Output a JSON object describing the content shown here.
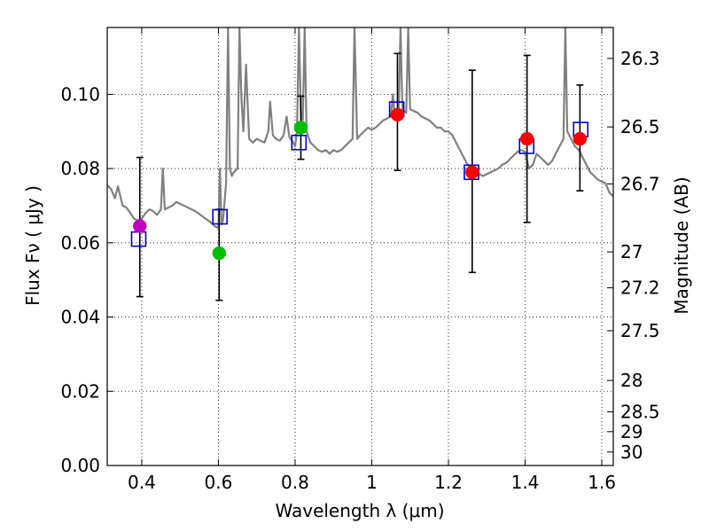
{
  "chart_data": {
    "type": "scatter",
    "xlabel": "Wavelength  λ (μm)",
    "ylabel_left": "Flux  Fν  ( μJy )",
    "ylabel_right": "Magnitude (AB)",
    "xlim": [
      0.31,
      1.63
    ],
    "ylim": [
      0.0,
      0.118
    ],
    "grid": true,
    "x_ticks": [
      0.4,
      0.6,
      0.8,
      1.0,
      1.2,
      1.4,
      1.6
    ],
    "x_tick_labels": [
      "0.4",
      "0.6",
      "0.8",
      "1",
      "1.2",
      "1.4",
      "1.6"
    ],
    "y_ticks": [
      0.0,
      0.02,
      0.04,
      0.06,
      0.08,
      0.1
    ],
    "y_tick_labels": [
      "0.00",
      "0.02",
      "0.04",
      "0.06",
      "0.08",
      "0.10"
    ],
    "mag_ticks": [
      26.3,
      26.5,
      26.7,
      27,
      27.2,
      27.5,
      28,
      28.5,
      29,
      30
    ],
    "mag_tick_labels": [
      "26.3",
      "26.5",
      "26.7",
      "27",
      "27.2",
      "27.5",
      "28",
      "28.5",
      "29",
      "30"
    ],
    "observed": [
      {
        "x": 0.395,
        "y": 0.0645,
        "yerr_low": 0.0455,
        "yerr_high": 0.083,
        "color": "#bf00bf"
      },
      {
        "x": 0.602,
        "y": 0.0572,
        "yerr_low": 0.0445,
        "yerr_high": 0.069,
        "color": "#00bf00"
      },
      {
        "x": 0.815,
        "y": 0.091,
        "yerr_low": 0.0825,
        "yerr_high": 0.0995,
        "color": "#00bf00"
      },
      {
        "x": 1.067,
        "y": 0.0945,
        "yerr_low": 0.0795,
        "yerr_high": 0.111,
        "color": "#ff0000"
      },
      {
        "x": 1.262,
        "y": 0.079,
        "yerr_low": 0.052,
        "yerr_high": 0.1065,
        "color": "#ff0000"
      },
      {
        "x": 1.405,
        "y": 0.088,
        "yerr_low": 0.0655,
        "yerr_high": 0.1105,
        "color": "#ff0000"
      },
      {
        "x": 1.543,
        "y": 0.088,
        "yerr_low": 0.074,
        "yerr_high": 0.1025,
        "color": "#ff0000"
      }
    ],
    "model_band": [
      {
        "x": 0.392,
        "y": 0.061
      },
      {
        "x": 0.604,
        "y": 0.067
      },
      {
        "x": 0.81,
        "y": 0.087
      },
      {
        "x": 1.065,
        "y": 0.096
      },
      {
        "x": 1.26,
        "y": 0.079
      },
      {
        "x": 1.404,
        "y": 0.086
      },
      {
        "x": 1.545,
        "y": 0.0905
      }
    ],
    "template_spectrum": [
      [
        0.31,
        0.0755
      ],
      [
        0.32,
        0.0745
      ],
      [
        0.33,
        0.072
      ],
      [
        0.338,
        0.0752
      ],
      [
        0.35,
        0.07
      ],
      [
        0.36,
        0.0695
      ],
      [
        0.37,
        0.068
      ],
      [
        0.38,
        0.0665
      ],
      [
        0.39,
        0.066
      ],
      [
        0.4,
        0.0665
      ],
      [
        0.41,
        0.068
      ],
      [
        0.42,
        0.069
      ],
      [
        0.43,
        0.0685
      ],
      [
        0.44,
        0.0675
      ],
      [
        0.45,
        0.069
      ],
      [
        0.455,
        0.08
      ],
      [
        0.46,
        0.069
      ],
      [
        0.47,
        0.0695
      ],
      [
        0.48,
        0.07
      ],
      [
        0.49,
        0.071
      ],
      [
        0.5,
        0.0705
      ],
      [
        0.52,
        0.0695
      ],
      [
        0.54,
        0.0685
      ],
      [
        0.56,
        0.067
      ],
      [
        0.58,
        0.0655
      ],
      [
        0.59,
        0.0645
      ],
      [
        0.6,
        0.064
      ],
      [
        0.604,
        0.08
      ],
      [
        0.608,
        0.065
      ],
      [
        0.612,
        0.066
      ],
      [
        0.62,
        0.076
      ],
      [
        0.625,
        0.118
      ],
      [
        0.63,
        0.08
      ],
      [
        0.635,
        0.078
      ],
      [
        0.64,
        0.079
      ],
      [
        0.65,
        0.08
      ],
      [
        0.655,
        0.118
      ],
      [
        0.66,
        0.099
      ],
      [
        0.665,
        0.09
      ],
      [
        0.672,
        0.108
      ],
      [
        0.68,
        0.088
      ],
      [
        0.69,
        0.087
      ],
      [
        0.7,
        0.088
      ],
      [
        0.71,
        0.0875
      ],
      [
        0.72,
        0.087
      ],
      [
        0.73,
        0.09
      ],
      [
        0.735,
        0.098
      ],
      [
        0.742,
        0.089
      ],
      [
        0.75,
        0.088
      ],
      [
        0.76,
        0.0875
      ],
      [
        0.77,
        0.089
      ],
      [
        0.778,
        0.094
      ],
      [
        0.785,
        0.0885
      ],
      [
        0.795,
        0.087
      ],
      [
        0.8,
        0.086
      ],
      [
        0.805,
        0.09
      ],
      [
        0.81,
        0.118
      ],
      [
        0.815,
        0.095
      ],
      [
        0.82,
        0.093
      ],
      [
        0.825,
        0.118
      ],
      [
        0.83,
        0.09
      ],
      [
        0.84,
        0.087
      ],
      [
        0.85,
        0.086
      ],
      [
        0.86,
        0.085
      ],
      [
        0.87,
        0.0845
      ],
      [
        0.88,
        0.085
      ],
      [
        0.89,
        0.084
      ],
      [
        0.9,
        0.085
      ],
      [
        0.91,
        0.0845
      ],
      [
        0.92,
        0.085
      ],
      [
        0.93,
        0.086
      ],
      [
        0.94,
        0.087
      ],
      [
        0.95,
        0.088
      ],
      [
        0.955,
        0.118
      ],
      [
        0.962,
        0.088
      ],
      [
        0.97,
        0.089
      ],
      [
        0.98,
        0.09
      ],
      [
        0.99,
        0.091
      ],
      [
        1.0,
        0.0905
      ],
      [
        1.01,
        0.091
      ],
      [
        1.02,
        0.092
      ],
      [
        1.03,
        0.093
      ],
      [
        1.04,
        0.0935
      ],
      [
        1.05,
        0.094
      ],
      [
        1.055,
        0.1
      ],
      [
        1.06,
        0.094
      ],
      [
        1.065,
        0.0945
      ],
      [
        1.07,
        0.095
      ],
      [
        1.075,
        0.118
      ],
      [
        1.08,
        0.096
      ],
      [
        1.09,
        0.095
      ],
      [
        1.095,
        0.118
      ],
      [
        1.1,
        0.096
      ],
      [
        1.11,
        0.0955
      ],
      [
        1.12,
        0.095
      ],
      [
        1.13,
        0.094
      ],
      [
        1.14,
        0.0935
      ],
      [
        1.15,
        0.093
      ],
      [
        1.16,
        0.092
      ],
      [
        1.17,
        0.091
      ],
      [
        1.18,
        0.091
      ],
      [
        1.19,
        0.09
      ],
      [
        1.2,
        0.09
      ],
      [
        1.21,
        0.089
      ],
      [
        1.22,
        0.087
      ],
      [
        1.23,
        0.085
      ],
      [
        1.24,
        0.083
      ],
      [
        1.25,
        0.081
      ],
      [
        1.26,
        0.08
      ],
      [
        1.27,
        0.079
      ],
      [
        1.28,
        0.0785
      ],
      [
        1.29,
        0.078
      ],
      [
        1.3,
        0.0785
      ],
      [
        1.31,
        0.079
      ],
      [
        1.32,
        0.0795
      ],
      [
        1.33,
        0.08
      ],
      [
        1.34,
        0.081
      ],
      [
        1.35,
        0.0815
      ],
      [
        1.36,
        0.0825
      ],
      [
        1.37,
        0.0835
      ],
      [
        1.38,
        0.0845
      ],
      [
        1.39,
        0.085
      ],
      [
        1.4,
        0.0845
      ],
      [
        1.41,
        0.08
      ],
      [
        1.42,
        0.081
      ],
      [
        1.43,
        0.084
      ],
      [
        1.44,
        0.083
      ],
      [
        1.45,
        0.082
      ],
      [
        1.46,
        0.081
      ],
      [
        1.47,
        0.082
      ],
      [
        1.48,
        0.084
      ],
      [
        1.49,
        0.086
      ],
      [
        1.5,
        0.088
      ],
      [
        1.505,
        0.118
      ],
      [
        1.51,
        0.09
      ],
      [
        1.52,
        0.088
      ],
      [
        1.53,
        0.086
      ],
      [
        1.54,
        0.085
      ],
      [
        1.55,
        0.083
      ],
      [
        1.56,
        0.081
      ],
      [
        1.57,
        0.079
      ],
      [
        1.58,
        0.078
      ],
      [
        1.59,
        0.077
      ],
      [
        1.6,
        0.0765
      ],
      [
        1.61,
        0.076
      ],
      [
        1.62,
        0.0735
      ],
      [
        1.63,
        0.0725
      ]
    ],
    "colors": {
      "template": "#808080",
      "model_marker": "#0000cc",
      "error_bar": "#000000",
      "grid": "#000000"
    }
  }
}
